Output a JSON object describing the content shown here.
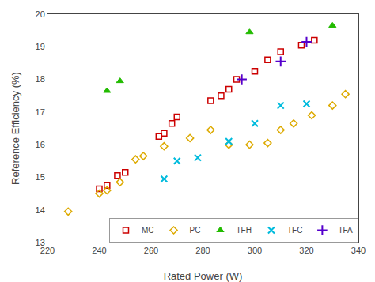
{
  "chart_data": {
    "type": "scatter",
    "xlabel": "Rated Power (W)",
    "ylabel": "Reference Efficiency (%)",
    "xlim": [
      220,
      340
    ],
    "ylim": [
      13,
      20
    ],
    "xticks": [
      220,
      240,
      260,
      280,
      300,
      320,
      340
    ],
    "yticks": [
      13,
      14,
      15,
      16,
      17,
      18,
      19,
      20
    ],
    "grid": false,
    "legend": "lower right",
    "series": [
      {
        "name": "MC",
        "color": "#cc0000",
        "marker": "square",
        "x": [
          240,
          243,
          247,
          250,
          263,
          265,
          268,
          270,
          283,
          287,
          290,
          293,
          300,
          305,
          310,
          318,
          323
        ],
        "values": [
          14.65,
          14.75,
          15.05,
          15.15,
          16.25,
          16.35,
          16.65,
          16.85,
          17.35,
          17.5,
          17.7,
          18.0,
          18.25,
          18.6,
          18.85,
          19.05,
          19.2
        ]
      },
      {
        "name": "PC",
        "color": "#ddaa00",
        "marker": "diamond",
        "x": [
          228,
          240,
          243,
          248,
          254,
          257,
          265,
          275,
          283,
          290,
          298,
          305,
          310,
          315,
          322,
          330,
          335
        ],
        "values": [
          13.95,
          14.5,
          14.6,
          14.85,
          15.55,
          15.65,
          15.95,
          16.2,
          16.45,
          16.0,
          16.0,
          16.05,
          16.45,
          16.65,
          16.9,
          17.2,
          17.55
        ]
      },
      {
        "name": "TFH",
        "color": "#22bb00",
        "marker": "triangle-up",
        "x": [
          243,
          248,
          298,
          330
        ],
        "values": [
          17.65,
          17.95,
          19.45,
          19.65
        ]
      },
      {
        "name": "TFC",
        "color": "#00bbdd",
        "marker": "x",
        "x": [
          265,
          270,
          278,
          290,
          300,
          310,
          320
        ],
        "values": [
          14.95,
          15.5,
          15.6,
          16.1,
          16.65,
          17.2,
          17.25
        ]
      },
      {
        "name": "TFA",
        "color": "#5500cc",
        "marker": "plus",
        "x": [
          295,
          310,
          320
        ],
        "values": [
          18.0,
          18.55,
          19.15
        ]
      }
    ]
  }
}
